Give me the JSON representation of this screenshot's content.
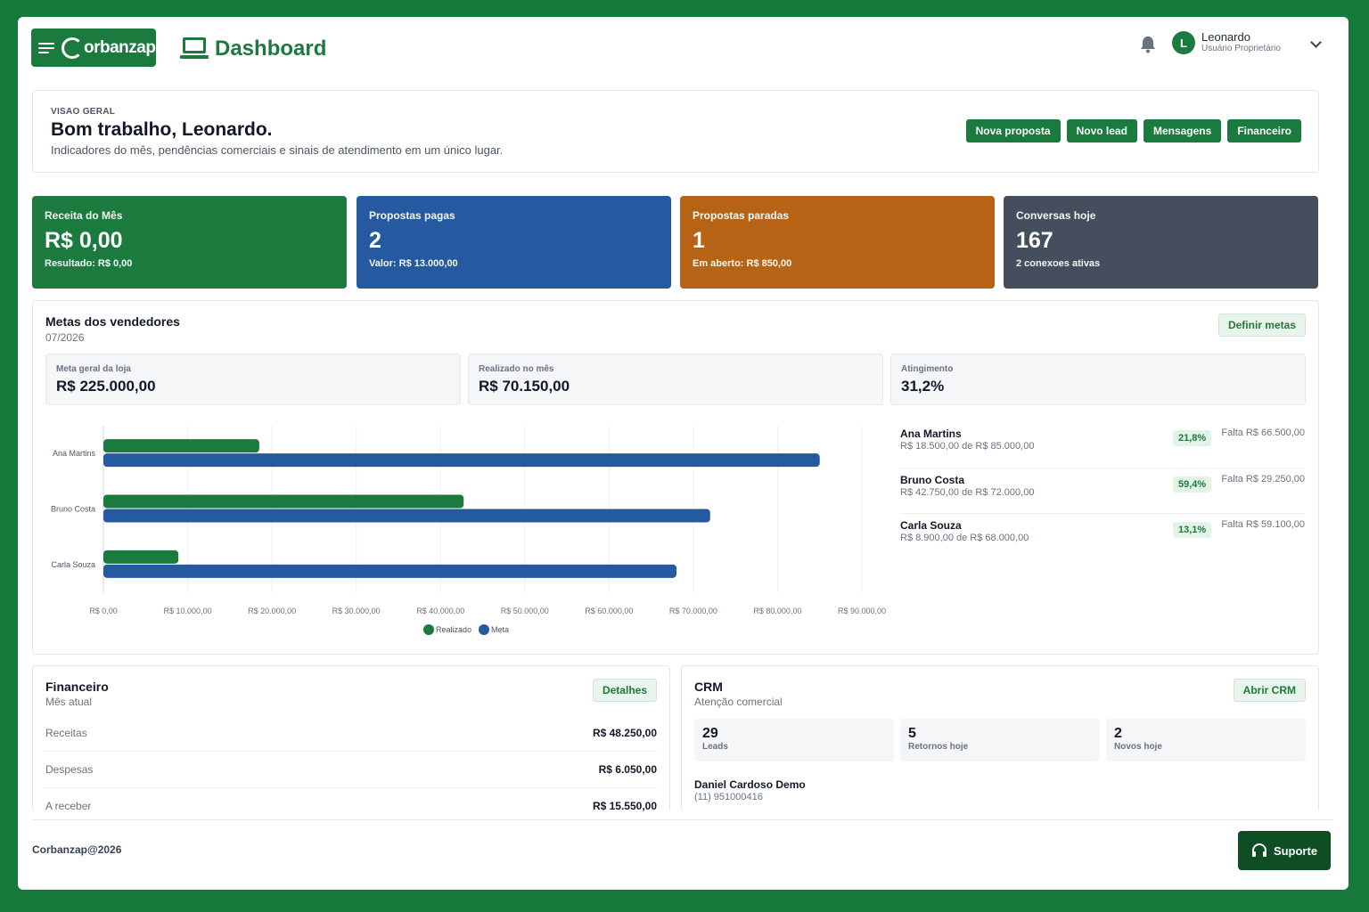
{
  "header": {
    "logo_text": "orbanzap",
    "page_title": "Dashboard",
    "user": {
      "initial": "L",
      "name": "Leonardo",
      "role": "Usuário Proprietário"
    }
  },
  "overview": {
    "kicker": "VISAO GERAL",
    "title": "Bom trabalho, Leonardo.",
    "subtitle": "Indicadores do mês, pendências comerciais e sinais de atendimento em um único lugar.",
    "actions": [
      "Nova proposta",
      "Novo lead",
      "Mensagens",
      "Financeiro"
    ]
  },
  "stats": [
    {
      "label": "Receita do Mês",
      "value": "R$ 0,00",
      "sub": "Resultado: R$ 0,00",
      "color": "#1b7a3d"
    },
    {
      "label": "Propostas pagas",
      "value": "2",
      "sub": "Valor: R$ 13.000,00",
      "color": "#2559a0"
    },
    {
      "label": "Propostas paradas",
      "value": "1",
      "sub": "Em aberto: R$ 850,00",
      "color": "#b76316"
    },
    {
      "label": "Conversas hoje",
      "value": "167",
      "sub": "2 conexoes ativas",
      "color": "#454e5d"
    }
  ],
  "goals": {
    "title": "Metas dos vendedores",
    "period": "07/2026",
    "define_button": "Definir metas",
    "metrics": [
      {
        "label": "Meta geral da loja",
        "value": "R$ 225.000,00"
      },
      {
        "label": "Realizado no mês",
        "value": "R$ 70.150,00"
      },
      {
        "label": "Atingimento",
        "value": "31,2%"
      }
    ],
    "sellers": [
      {
        "name": "Ana Martins",
        "detail": "R$ 18.500,00 de R$ 85.000,00",
        "pct": "21,8%",
        "missing": "Falta R$ 66.500,00"
      },
      {
        "name": "Bruno Costa",
        "detail": "R$ 42.750,00 de R$ 72.000,00",
        "pct": "59,4%",
        "missing": "Falta R$ 29.250,00"
      },
      {
        "name": "Carla Souza",
        "detail": "R$ 8.900,00 de R$ 68.000,00",
        "pct": "13,1%",
        "missing": "Falta R$ 59.100,00"
      }
    ]
  },
  "chart_data": {
    "type": "bar",
    "orientation": "horizontal",
    "categories": [
      "Ana Martins",
      "Bruno Costa",
      "Carla Souza"
    ],
    "series": [
      {
        "name": "Realizado",
        "values": [
          18500,
          42750,
          8900
        ],
        "color": "#1b7a3d"
      },
      {
        "name": "Meta",
        "values": [
          85000,
          72000,
          68000
        ],
        "color": "#2559a0"
      }
    ],
    "xlim": [
      0,
      90000
    ],
    "x_ticks": [
      "R$ 0,00",
      "R$ 10.000,00",
      "R$ 20.000,00",
      "R$ 30.000,00",
      "R$ 40.000,00",
      "R$ 50.000,00",
      "R$ 60.000,00",
      "R$ 70.000,00",
      "R$ 80.000,00",
      "R$ 90.000,00"
    ],
    "grid": true,
    "legend": "bottom"
  },
  "financeiro": {
    "title": "Financeiro",
    "subtitle": "Mês atual",
    "details_button": "Detalhes",
    "rows": [
      {
        "label": "Receitas",
        "value": "R$ 48.250,00"
      },
      {
        "label": "Despesas",
        "value": "R$ 6.050,00"
      },
      {
        "label": "A receber",
        "value": "R$ 15.550,00"
      }
    ]
  },
  "crm": {
    "title": "CRM",
    "subtitle": "Atenção comercial",
    "open_button": "Abrir CRM",
    "boxes": [
      {
        "value": "29",
        "label": "Leads"
      },
      {
        "value": "5",
        "label": "Retornos hoje"
      },
      {
        "value": "2",
        "label": "Novos hoje"
      }
    ],
    "contact": {
      "name": "Daniel Cardoso Demo",
      "phone": "(11) 951000416"
    }
  },
  "footer": {
    "copyright": "Corbanzap@2026",
    "support": "Suporte"
  }
}
